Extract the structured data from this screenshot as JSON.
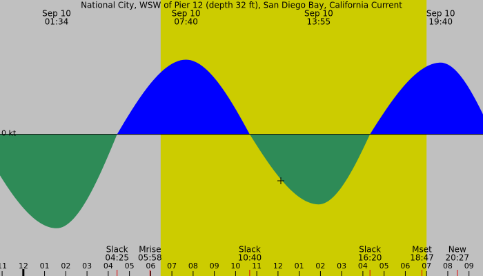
{
  "chart_data": {
    "type": "tide-current",
    "title": "National City, WSW of Pier 12 (depth 32 ft), San Diego Bay, California Current",
    "x": [
      -2.2,
      1.567,
      4.417,
      7.667,
      10.667,
      13.917,
      16.333,
      19.667,
      22.1
    ],
    "series": [
      {
        "values": [
          0,
          -0.63,
          0,
          0.5,
          0,
          -0.47,
          0,
          0.48,
          0
        ],
        "flood_color": "#0000ff",
        "ebb_color": "#2e8b57"
      }
    ],
    "xlim": [
      -1.1,
      21.66
    ],
    "ylim": [
      -0.95,
      0.9
    ],
    "yticks": [
      {
        "value": 0,
        "label": "0 kt"
      }
    ],
    "xticks": [
      {
        "value": -1,
        "label": "11"
      },
      {
        "value": 0,
        "label": "12"
      },
      {
        "value": 1,
        "label": "01"
      },
      {
        "value": 2,
        "label": "02"
      },
      {
        "value": 3,
        "label": "03"
      },
      {
        "value": 4,
        "label": "04"
      },
      {
        "value": 5,
        "label": "05"
      },
      {
        "value": 6,
        "label": "06"
      },
      {
        "value": 7,
        "label": "07"
      },
      {
        "value": 8,
        "label": "08"
      },
      {
        "value": 9,
        "label": "09"
      },
      {
        "value": 10,
        "label": "10"
      },
      {
        "value": 11,
        "label": "11"
      },
      {
        "value": 12,
        "label": "12"
      },
      {
        "value": 13,
        "label": "01"
      },
      {
        "value": 14,
        "label": "02"
      },
      {
        "value": 15,
        "label": "03"
      },
      {
        "value": 16,
        "label": "04"
      },
      {
        "value": 17,
        "label": "05"
      },
      {
        "value": 18,
        "label": "06"
      },
      {
        "value": 19,
        "label": "07"
      },
      {
        "value": 20,
        "label": "08"
      },
      {
        "value": 21,
        "label": "09"
      }
    ],
    "daylight": [
      6.47,
      19.0
    ],
    "night_color": "#c0c0c0",
    "day_color": "#cccc00",
    "extreme_labels": [
      {
        "date": "Sep 10",
        "time": "01:34",
        "x": 1.567
      },
      {
        "date": "Sep 10",
        "time": "07:40",
        "x": 7.667
      },
      {
        "date": "Sep 10",
        "time": "13:55",
        "x": 13.917
      },
      {
        "date": "Sep 10",
        "time": "19:40",
        "x": 19.667
      }
    ],
    "events": [
      {
        "label": "Slack",
        "time": "04:25",
        "x": 4.417
      },
      {
        "label": "Mrise",
        "time": "05:58",
        "x": 5.967
      },
      {
        "label": "Slack",
        "time": "10:40",
        "x": 10.667
      },
      {
        "label": "Slack",
        "time": "16:20",
        "x": 16.333
      },
      {
        "label": "Mset",
        "time": "18:47",
        "x": 18.783
      },
      {
        "label": "New",
        "time": "20:27",
        "x": 20.45
      }
    ]
  }
}
